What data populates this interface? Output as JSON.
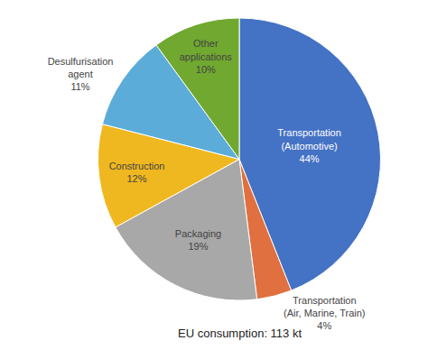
{
  "chart_data": {
    "type": "pie",
    "subtitle": "EU consumption: 113 kt",
    "categories": [
      "Transportation\n(Automotive)\n44%",
      "Transportation\n(Air, Marine, Train)\n4%",
      "Packaging\n19%",
      "Construction\n12%",
      "Desulfurisation\nagent\n11%",
      "Other\napplications\n10%"
    ],
    "values": [
      44,
      4,
      19,
      12,
      11,
      10
    ],
    "colors": [
      "#4472C4",
      "#E07040",
      "#A8A8A8",
      "#F0B820",
      "#5BACD8",
      "#70A830"
    ],
    "legend": false
  }
}
